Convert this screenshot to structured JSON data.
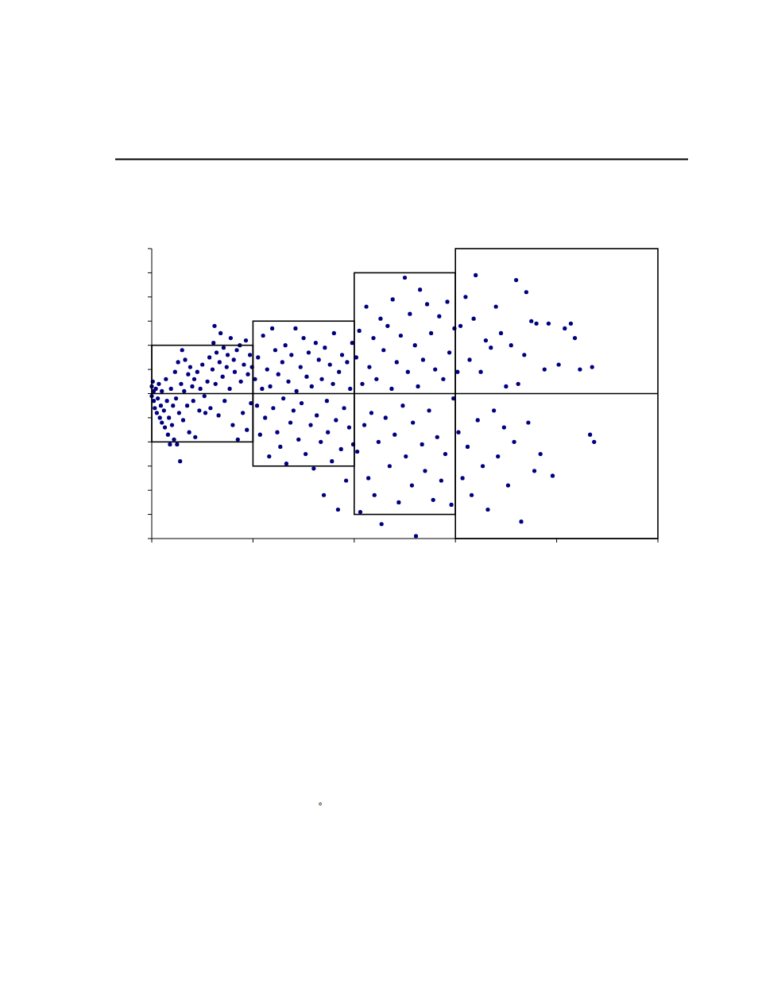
{
  "chart_data": {
    "type": "scatter",
    "color": "#00007f",
    "marker": "circle",
    "tick_labels": false,
    "grid": false,
    "annotation": "°",
    "xlim": [
      0,
      5
    ],
    "xticks": [
      0,
      1,
      2,
      3,
      4,
      5
    ],
    "ylim": [
      -6,
      6
    ],
    "yticks": [
      -6,
      -5,
      -4,
      -3,
      -2,
      -1,
      0,
      1,
      2,
      3,
      4,
      5,
      6
    ],
    "reference_line": 0,
    "boxes": [
      {
        "x0": 0,
        "x1": 1,
        "y0": -2,
        "y1": 2
      },
      {
        "x0": 1,
        "x1": 2,
        "y0": -3,
        "y1": 3
      },
      {
        "x0": 2,
        "x1": 3,
        "y0": -5,
        "y1": 5
      },
      {
        "x0": 3,
        "x1": 5,
        "y0": -6,
        "y1": 6
      }
    ],
    "x": [
      0.0,
      0.0,
      0.01,
      0.02,
      0.02,
      0.03,
      0.04,
      0.05,
      0.06,
      0.07,
      0.08,
      0.09,
      0.1,
      0.1,
      0.12,
      0.13,
      0.14,
      0.15,
      0.16,
      0.17,
      0.18,
      0.19,
      0.2,
      0.21,
      0.22,
      0.23,
      0.24,
      0.25,
      0.26,
      0.27,
      0.28,
      0.29,
      0.3,
      0.31,
      0.32,
      0.33,
      0.35,
      0.36,
      0.37,
      0.38,
      0.4,
      0.41,
      0.42,
      0.43,
      0.45,
      0.47,
      0.48,
      0.5,
      0.52,
      0.53,
      0.55,
      0.57,
      0.58,
      0.6,
      0.61,
      0.62,
      0.63,
      0.64,
      0.66,
      0.67,
      0.68,
      0.7,
      0.71,
      0.72,
      0.74,
      0.75,
      0.77,
      0.78,
      0.8,
      0.81,
      0.82,
      0.84,
      0.85,
      0.87,
      0.88,
      0.9,
      0.91,
      0.93,
      0.94,
      0.95,
      0.97,
      0.98,
      0.99,
      1.02,
      1.04,
      1.05,
      1.07,
      1.09,
      1.1,
      1.12,
      1.14,
      1.16,
      1.17,
      1.19,
      1.2,
      1.22,
      1.24,
      1.25,
      1.27,
      1.29,
      1.3,
      1.32,
      1.33,
      1.35,
      1.37,
      1.38,
      1.4,
      1.42,
      1.43,
      1.45,
      1.47,
      1.48,
      1.5,
      1.52,
      1.53,
      1.55,
      1.57,
      1.58,
      1.6,
      1.62,
      1.63,
      1.65,
      1.67,
      1.68,
      1.7,
      1.71,
      1.73,
      1.74,
      1.76,
      1.78,
      1.79,
      1.8,
      1.82,
      1.84,
      1.85,
      1.87,
      1.88,
      1.9,
      1.92,
      1.93,
      1.95,
      1.96,
      1.98,
      1.99,
      2.02,
      2.03,
      2.05,
      2.06,
      2.08,
      2.1,
      2.12,
      2.14,
      2.15,
      2.17,
      2.19,
      2.2,
      2.22,
      2.24,
      2.26,
      2.27,
      2.29,
      2.31,
      2.33,
      2.35,
      2.37,
      2.38,
      2.4,
      2.42,
      2.44,
      2.46,
      2.48,
      2.5,
      2.51,
      2.53,
      2.55,
      2.57,
      2.58,
      2.6,
      2.61,
      2.63,
      2.65,
      2.67,
      2.68,
      2.7,
      2.72,
      2.74,
      2.76,
      2.78,
      2.8,
      2.82,
      2.84,
      2.86,
      2.88,
      2.9,
      2.92,
      2.94,
      2.96,
      2.98,
      2.99,
      3.02,
      3.03,
      3.05,
      3.07,
      3.1,
      3.12,
      3.14,
      3.16,
      3.18,
      3.2,
      3.22,
      3.25,
      3.27,
      3.3,
      3.32,
      3.35,
      3.38,
      3.4,
      3.42,
      3.45,
      3.48,
      3.5,
      3.52,
      3.55,
      3.58,
      3.6,
      3.62,
      3.65,
      3.68,
      3.7,
      3.72,
      3.75,
      3.78,
      3.8,
      3.84,
      3.88,
      3.92,
      3.96,
      4.02,
      4.08,
      4.14,
      4.18,
      4.23,
      4.33,
      4.35,
      4.37
    ],
    "values": [
      0.3,
      -0.1,
      0.5,
      -0.3,
      0.1,
      -0.6,
      0.2,
      -0.8,
      -0.2,
      0.4,
      -1.0,
      -0.5,
      -1.2,
      0.1,
      -0.7,
      -1.4,
      0.6,
      -0.3,
      -1.7,
      -1.0,
      -2.1,
      0.2,
      -1.3,
      -0.5,
      -1.9,
      0.9,
      -0.2,
      -2.1,
      1.3,
      -0.8,
      -2.8,
      0.4,
      1.8,
      -1.1,
      0.1,
      1.4,
      -0.5,
      0.8,
      -1.6,
      1.1,
      0.3,
      -0.3,
      0.6,
      -1.8,
      0.9,
      -0.7,
      0.2,
      1.2,
      -0.1,
      -0.8,
      0.5,
      1.5,
      -0.6,
      1.0,
      2.1,
      2.8,
      0.4,
      1.7,
      -0.9,
      1.3,
      2.5,
      0.7,
      1.9,
      -0.3,
      1.1,
      1.6,
      0.2,
      2.3,
      -1.3,
      1.4,
      0.9,
      1.8,
      -1.9,
      2.0,
      0.5,
      -0.8,
      1.2,
      2.2,
      -1.5,
      0.8,
      1.6,
      -0.4,
      1.1,
      0.6,
      -0.5,
      1.5,
      -1.7,
      0.2,
      2.4,
      -1.0,
      1.0,
      -2.6,
      0.3,
      2.7,
      -0.6,
      1.8,
      -1.6,
      0.8,
      -2.2,
      1.3,
      -0.2,
      2.0,
      -2.9,
      0.5,
      -1.2,
      1.6,
      -0.7,
      2.7,
      0.1,
      -1.9,
      1.1,
      -0.4,
      2.3,
      -2.5,
      0.7,
      1.7,
      -1.3,
      0.3,
      -3.1,
      2.1,
      -0.9,
      1.4,
      -2.0,
      0.6,
      -4.2,
      1.9,
      -0.3,
      -1.6,
      1.2,
      -2.8,
      0.4,
      2.5,
      -1.1,
      -4.8,
      0.9,
      -2.3,
      1.6,
      -0.6,
      -3.6,
      1.3,
      -1.4,
      0.2,
      2.1,
      -2.1,
      1.5,
      -2.4,
      2.6,
      -4.9,
      0.4,
      -1.3,
      3.6,
      -3.5,
      1.1,
      -0.8,
      2.3,
      -4.2,
      0.6,
      -2.0,
      3.1,
      -5.4,
      1.8,
      -1.0,
      2.8,
      -3.0,
      0.2,
      3.9,
      -1.7,
      1.3,
      -4.5,
      2.4,
      -0.5,
      4.8,
      -2.6,
      0.9,
      3.3,
      -3.8,
      -1.2,
      2.0,
      -5.9,
      0.3,
      4.3,
      -2.1,
      1.4,
      -3.2,
      3.7,
      -0.7,
      2.5,
      -4.4,
      1.0,
      -1.8,
      3.2,
      -3.6,
      0.6,
      -2.5,
      3.8,
      1.7,
      -4.6,
      -0.2,
      2.7,
      0.9,
      -1.6,
      2.8,
      -3.5,
      4.0,
      -2.2,
      1.4,
      -4.2,
      3.1,
      4.9,
      -1.1,
      0.9,
      -3.0,
      2.2,
      -4.8,
      1.9,
      -0.7,
      3.6,
      -2.6,
      2.5,
      -1.4,
      0.3,
      -3.8,
      2.0,
      -2.0,
      4.7,
      0.4,
      -5.3,
      1.6,
      4.2,
      -1.2,
      3.0,
      -3.2,
      2.9,
      -2.5,
      1.0,
      2.9,
      -3.4,
      1.2,
      2.7,
      2.9,
      2.3,
      1.0,
      -1.7,
      1.1,
      -2.0
    ]
  }
}
